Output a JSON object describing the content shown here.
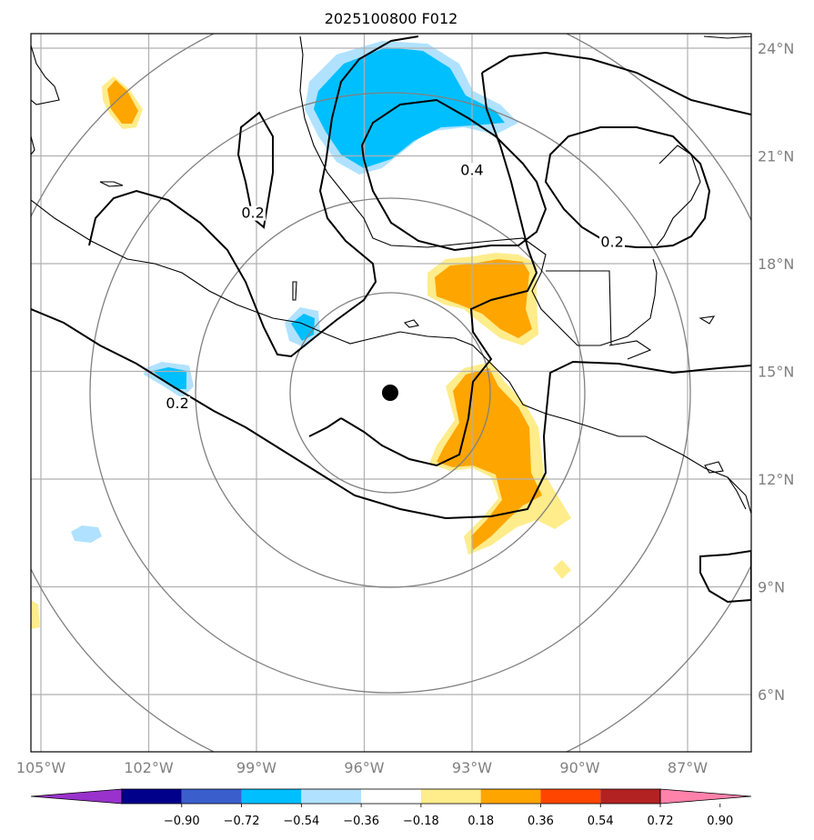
{
  "title": "2025100800 F012",
  "map": {
    "lon_labels": [
      "105°W",
      "102°W",
      "99°W",
      "96°W",
      "93°W",
      "90°W",
      "87°W"
    ],
    "lat_labels": [
      "24°N",
      "21°N",
      "18°N",
      "15°N",
      "12°N",
      "9°N",
      "6°N"
    ],
    "lon_values": [
      -105,
      -102,
      -99,
      -96,
      -93,
      -90,
      -87
    ],
    "lat_values": [
      24,
      21,
      18,
      15,
      12,
      9,
      6
    ],
    "center_marker": {
      "lon": -95.3,
      "lat": 14.4,
      "symbol": "filled-circle"
    },
    "range_rings": "concentric gray circles around center",
    "contour_labels": [
      {
        "text": "0.2",
        "lon": -99.1,
        "lat": 19.3
      },
      {
        "text": "0.4",
        "lon": -93.0,
        "lat": 20.5
      },
      {
        "text": "0.2",
        "lon": -89.1,
        "lat": 18.5
      },
      {
        "text": "0.2",
        "lon": -101.2,
        "lat": 14.0
      }
    ]
  },
  "colorbar": {
    "labels": [
      "−0.90",
      "−0.72",
      "−0.54",
      "−0.36",
      "−0.18",
      "0.18",
      "0.36",
      "0.54",
      "0.72",
      "0.90"
    ],
    "colors": [
      "#9932cc",
      "#00008b",
      "#3a5fcd",
      "#00bfff",
      "#b0e2ff",
      "#ffffff",
      "#ffec8b",
      "#ffa500",
      "#ff4500",
      "#b22222",
      "#ff82ab"
    ]
  },
  "colors": {
    "grid": "#b0b0b0",
    "rings": "#808080",
    "coast": "#000000"
  }
}
